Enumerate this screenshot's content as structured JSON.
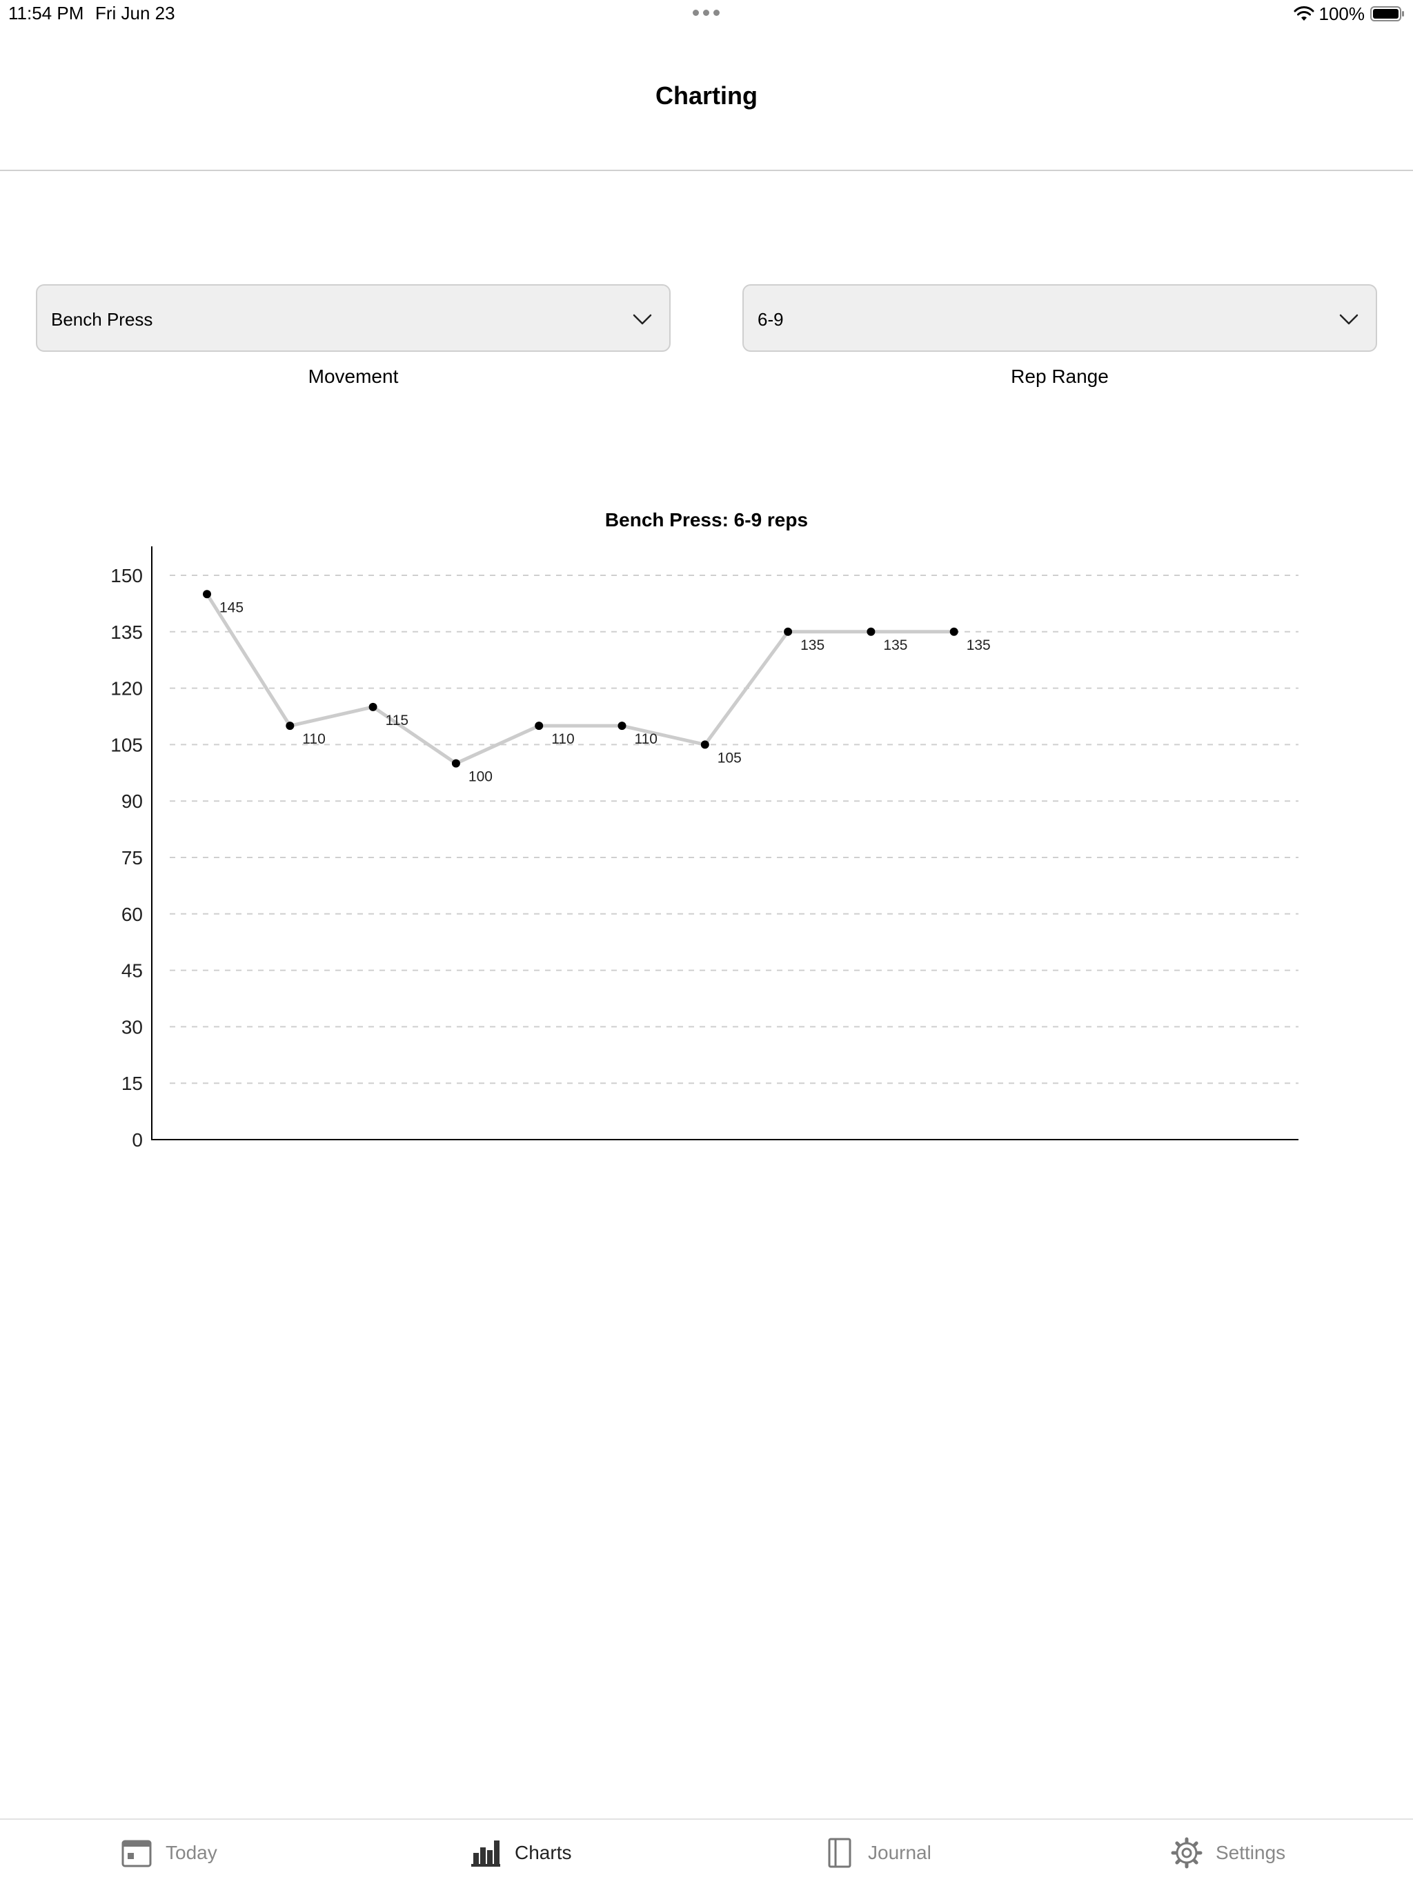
{
  "status_bar": {
    "time": "11:54 PM",
    "date": "Fri Jun 23",
    "battery": "100%"
  },
  "nav": {
    "title": "Charting"
  },
  "filters": {
    "movement": {
      "value": "Bench Press",
      "label": "Movement"
    },
    "rep_range": {
      "value": "6-9",
      "label": "Rep Range"
    }
  },
  "chart_data": {
    "type": "line",
    "title": "Bench Press: 6-9 reps",
    "xlabel": "",
    "ylabel": "",
    "ylim": [
      0,
      150
    ],
    "yticks": [
      0,
      15,
      30,
      45,
      60,
      75,
      90,
      105,
      120,
      135,
      150
    ],
    "grid": true,
    "series": [
      {
        "values": [
          145,
          110,
          115,
          100,
          110,
          110,
          105,
          135,
          135,
          135
        ]
      }
    ],
    "line_color": "#cccccc",
    "point_color": "#000000"
  },
  "tabs": [
    {
      "label": "Today",
      "icon": "calendar-icon",
      "active": false
    },
    {
      "label": "Charts",
      "icon": "bar-chart-icon",
      "active": true
    },
    {
      "label": "Journal",
      "icon": "book-icon",
      "active": false
    },
    {
      "label": "Settings",
      "icon": "gear-icon",
      "active": false
    }
  ]
}
